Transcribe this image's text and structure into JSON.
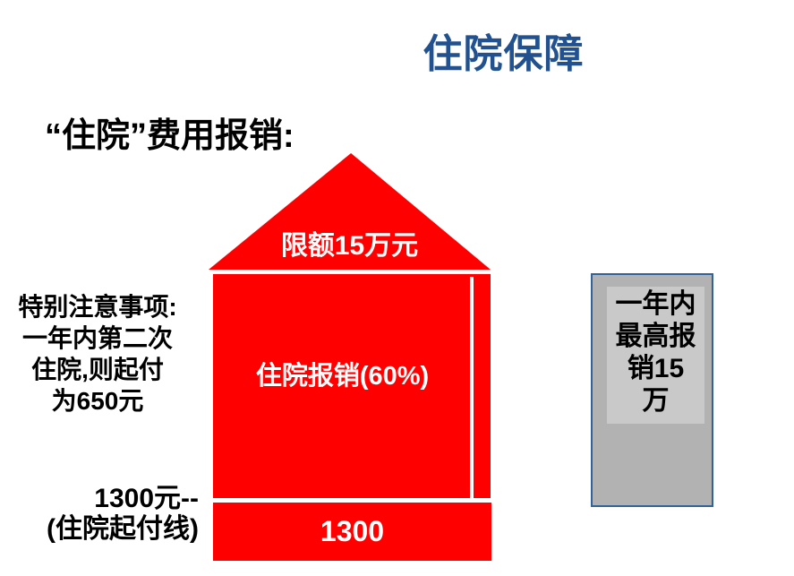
{
  "slide": {
    "title": "住院保障",
    "subtitle": "“住院”费用报销:",
    "house": {
      "roof_label": "限额15万元",
      "body_label": "住院报销(60%)",
      "base_value": "1300"
    },
    "left_note": {
      "lines": [
        "特别注意事项:",
        "一年内第二次",
        "住院,则起付",
        "为650元"
      ]
    },
    "deductible_caption": {
      "lines": [
        "1300元--",
        "(住院起付线)"
      ]
    },
    "right_box": {
      "full_text": "一年内最高报销15万",
      "lines": [
        "一年内",
        "最高报",
        "销15",
        "万"
      ]
    },
    "colors": {
      "house_red": "#FF0000",
      "title_blue": "#21518E",
      "panel_gray": "#B2B2B2",
      "panel_inner_gray": "#C9C9C9",
      "panel_border_blue": "#31639A",
      "text_black": "#000000",
      "text_white": "#FFFFFF"
    }
  }
}
